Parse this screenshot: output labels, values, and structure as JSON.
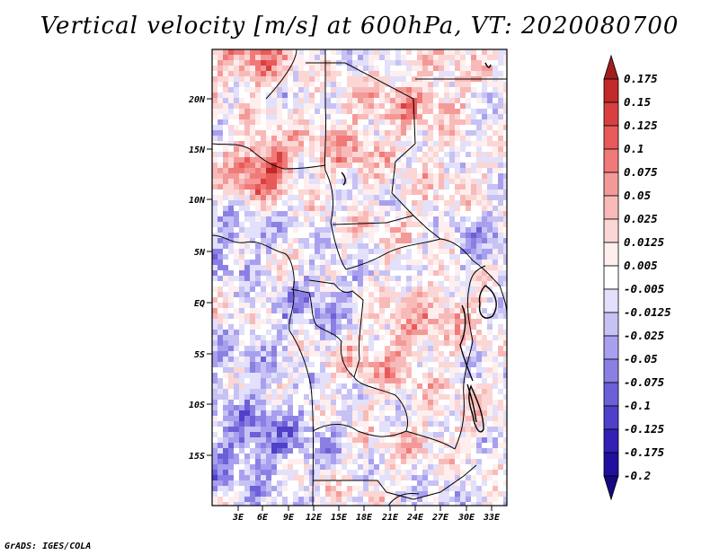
{
  "title": "Vertical velocity [m/s] at 600hPa, VT: 2020080700",
  "credit": "GrADS: IGES/COLA",
  "map": {
    "lat_ticks": [
      "20N",
      "15N",
      "10N",
      "5N",
      "EQ",
      "5S",
      "10S",
      "15S"
    ],
    "lon_ticks": [
      "3E",
      "6E",
      "9E",
      "12E",
      "15E",
      "18E",
      "21E",
      "24E",
      "27E",
      "30E",
      "33E"
    ]
  },
  "colorbar": {
    "levels": [
      "0.175",
      "0.15",
      "0.125",
      "0.1",
      "0.075",
      "0.05",
      "0.025",
      "0.0125",
      "0.005",
      "-0.005",
      "-0.0125",
      "-0.025",
      "-0.05",
      "-0.075",
      "-0.1",
      "-0.125",
      "-0.175",
      "-0.2"
    ],
    "colors": [
      "#a01e1e",
      "#c02a2a",
      "#d84040",
      "#e85a5a",
      "#f07a78",
      "#f39a98",
      "#f8bab8",
      "#fbd6d4",
      "#feeeee",
      "#ffffff",
      "#e2e0fa",
      "#c6c2f4",
      "#a8a0ee",
      "#8a80e4",
      "#6c60d8",
      "#4e40c8",
      "#3420b4",
      "#20109e",
      "#18087e"
    ]
  }
}
